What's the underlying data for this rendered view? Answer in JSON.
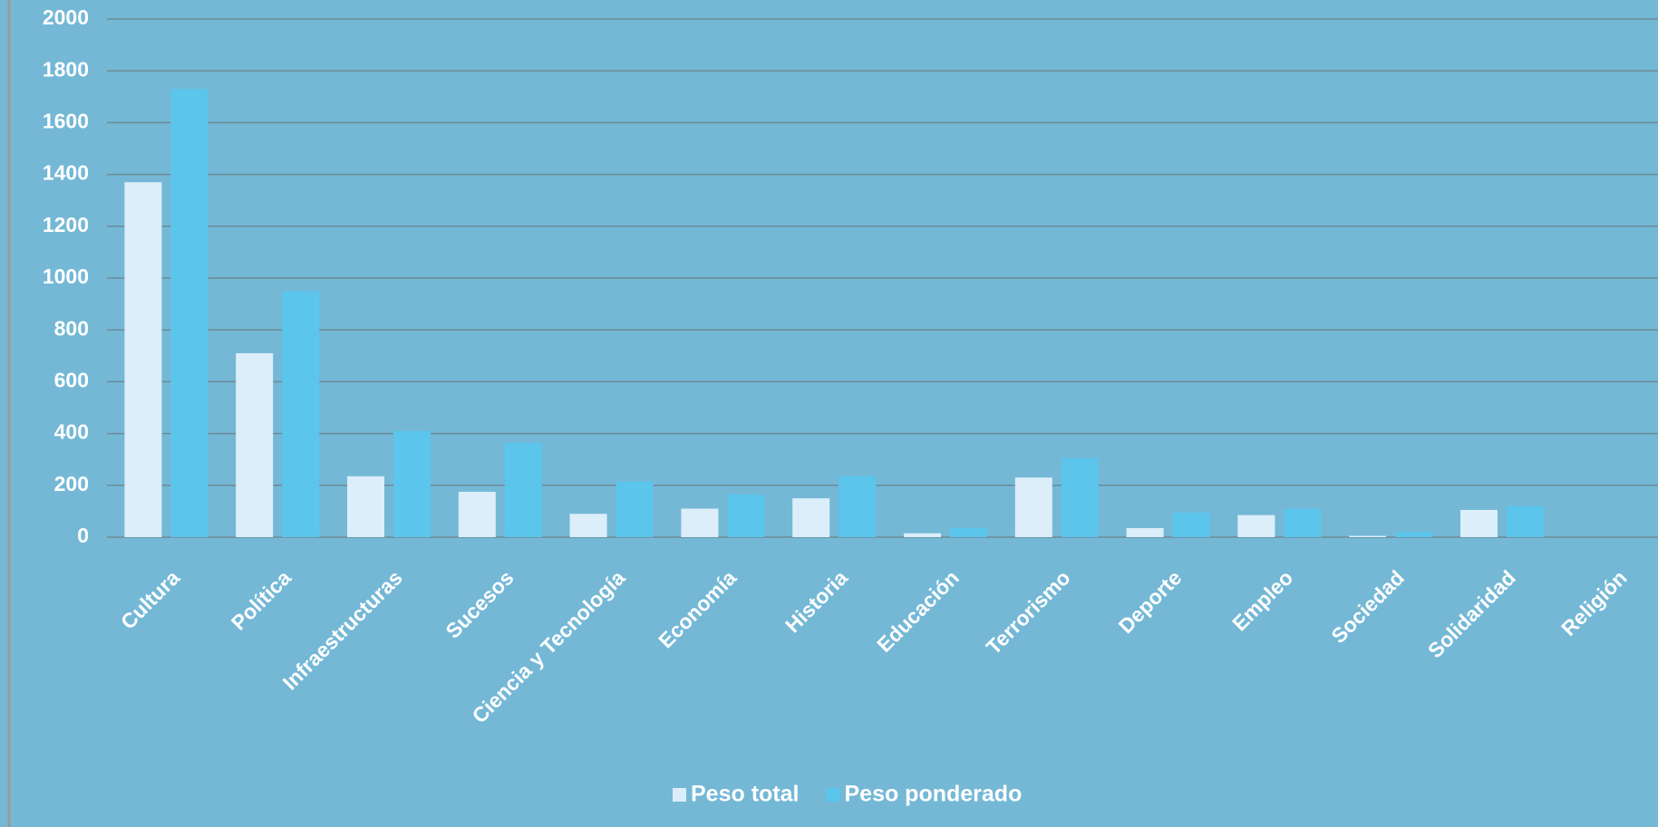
{
  "chart_data": {
    "type": "bar",
    "categories": [
      "Cultura",
      "Política",
      "Infraestructuras",
      "Sucesos",
      "Ciencia y Tecnología",
      "Economía",
      "Historia",
      "Educación",
      "Terrorismo",
      "Deporte",
      "Empleo",
      "Sociedad",
      "Solidaridad",
      "Religión"
    ],
    "series": [
      {
        "name": "Peso total",
        "color": "#dbeefa",
        "values": [
          1370,
          710,
          235,
          175,
          90,
          110,
          150,
          15,
          230,
          35,
          85,
          5,
          105,
          0
        ]
      },
      {
        "name": "Peso ponderado",
        "color": "#5bc5ec",
        "values": [
          1730,
          950,
          410,
          365,
          215,
          165,
          235,
          35,
          305,
          95,
          110,
          20,
          120,
          0
        ]
      }
    ],
    "ylim": [
      0,
      2000
    ],
    "yticks": [
      0,
      200,
      400,
      600,
      800,
      1000,
      1200,
      1400,
      1600,
      1800,
      2000
    ],
    "grid": true,
    "legend": "bottom"
  }
}
